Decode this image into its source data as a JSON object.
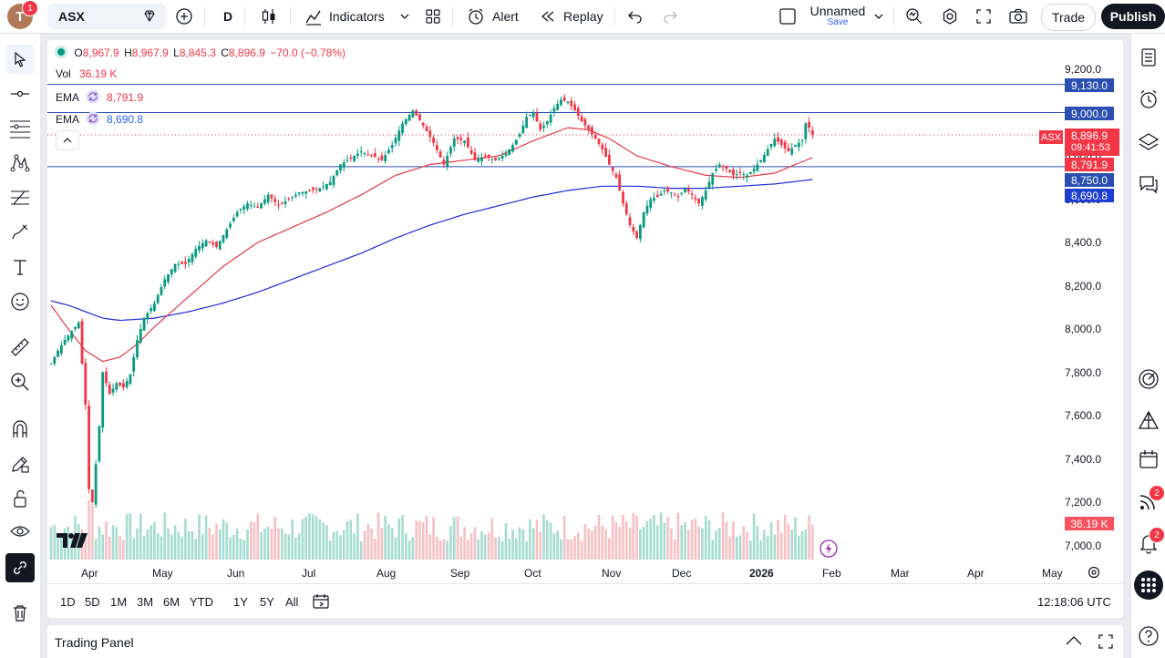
{
  "topbar": {
    "avatar_letter": "T",
    "notification_count": "1",
    "symbol": "ASX",
    "interval": "D",
    "indicators_label": "Indicators",
    "alert_label": "Alert",
    "replay_label": "Replay",
    "layout_name": "Unnamed",
    "layout_save": "Save",
    "trade_label": "Trade",
    "publish_label": "Publish"
  },
  "legend": {
    "open_label": "O",
    "open": "8,967.9",
    "high_label": "H",
    "high": "8,967.9",
    "low_label": "L",
    "low": "8,845.3",
    "close_label": "C",
    "close": "8,896.9",
    "change": "−70.0 (−0.78%)",
    "vol_label": "Vol",
    "vol_value": "36.19 K",
    "ema1_label": "EMA",
    "ema1_value": "8,791.9",
    "ema2_label": "EMA",
    "ema2_value": "8,690.8"
  },
  "chart_data": {
    "type": "candlestick",
    "symbol": "ASX",
    "interval": "D",
    "y_axis_ticks": [
      "9,200.0",
      "9,000.0",
      "8,800.0",
      "8,600.0",
      "8,400.0",
      "8,200.0",
      "8,000.0",
      "7,800.0",
      "7,600.0",
      "7,400.0",
      "7,200.0",
      "7,000.0"
    ],
    "x_axis_ticks": [
      "Apr",
      "May",
      "Jun",
      "Jul",
      "Aug",
      "Sep",
      "Oct",
      "Nov",
      "Dec",
      "2026",
      "Feb",
      "Mar",
      "Apr",
      "May"
    ],
    "ylim": [
      6980,
      9290
    ],
    "horizontal_lines": [
      9130.0,
      9000.0,
      8750.0
    ],
    "trend_close_points": [
      [
        0,
        7840
      ],
      [
        2,
        7900
      ],
      [
        4,
        7950
      ],
      [
        6,
        7990
      ],
      [
        8,
        8030
      ],
      [
        10,
        7650
      ],
      [
        11,
        7260
      ],
      [
        12,
        7200
      ],
      [
        14,
        7550
      ],
      [
        15,
        7800
      ],
      [
        17,
        7700
      ],
      [
        19,
        7750
      ],
      [
        21,
        7730
      ],
      [
        23,
        7790
      ],
      [
        25,
        7950
      ],
      [
        27,
        8050
      ],
      [
        30,
        8120
      ],
      [
        33,
        8230
      ],
      [
        36,
        8300
      ],
      [
        39,
        8300
      ],
      [
        42,
        8370
      ],
      [
        45,
        8410
      ],
      [
        48,
        8380
      ],
      [
        51,
        8460
      ],
      [
        54,
        8540
      ],
      [
        57,
        8580
      ],
      [
        60,
        8560
      ],
      [
        63,
        8620
      ],
      [
        66,
        8570
      ],
      [
        69,
        8600
      ],
      [
        72,
        8630
      ],
      [
        75,
        8640
      ],
      [
        78,
        8650
      ],
      [
        81,
        8680
      ],
      [
        84,
        8760
      ],
      [
        87,
        8790
      ],
      [
        90,
        8820
      ],
      [
        93,
        8800
      ],
      [
        96,
        8780
      ],
      [
        99,
        8850
      ],
      [
        102,
        8950
      ],
      [
        105,
        9010
      ],
      [
        108,
        8940
      ],
      [
        111,
        8860
      ],
      [
        114,
        8760
      ],
      [
        117,
        8880
      ],
      [
        120,
        8870
      ],
      [
        123,
        8780
      ],
      [
        126,
        8800
      ],
      [
        129,
        8780
      ],
      [
        132,
        8810
      ],
      [
        134,
        8850
      ],
      [
        136,
        8900
      ],
      [
        138,
        8980
      ],
      [
        140,
        9000
      ],
      [
        142,
        8920
      ],
      [
        144,
        8960
      ],
      [
        146,
        9020
      ],
      [
        148,
        9060
      ],
      [
        150,
        9050
      ],
      [
        152,
        9010
      ],
      [
        154,
        8960
      ],
      [
        156,
        8920
      ],
      [
        158,
        8880
      ],
      [
        160,
        8830
      ],
      [
        162,
        8760
      ],
      [
        164,
        8700
      ],
      [
        166,
        8580
      ],
      [
        168,
        8480
      ],
      [
        170,
        8420
      ],
      [
        172,
        8540
      ],
      [
        174,
        8600
      ],
      [
        176,
        8610
      ],
      [
        178,
        8640
      ],
      [
        180,
        8630
      ],
      [
        182,
        8610
      ],
      [
        184,
        8650
      ],
      [
        186,
        8620
      ],
      [
        188,
        8580
      ],
      [
        190,
        8640
      ],
      [
        192,
        8720
      ],
      [
        194,
        8760
      ],
      [
        196,
        8740
      ],
      [
        198,
        8710
      ],
      [
        200,
        8720
      ],
      [
        202,
        8710
      ],
      [
        204,
        8740
      ],
      [
        206,
        8780
      ],
      [
        208,
        8830
      ],
      [
        210,
        8880
      ],
      [
        212,
        8850
      ],
      [
        214,
        8820
      ],
      [
        216,
        8850
      ],
      [
        218,
        8870
      ],
      [
        219,
        8950
      ],
      [
        220,
        8930
      ],
      [
        221,
        8896.9
      ]
    ],
    "ema_red_points": [
      [
        0,
        8110
      ],
      [
        5,
        8000
      ],
      [
        10,
        7900
      ],
      [
        15,
        7850
      ],
      [
        20,
        7870
      ],
      [
        25,
        7930
      ],
      [
        30,
        8010
      ],
      [
        40,
        8150
      ],
      [
        50,
        8290
      ],
      [
        60,
        8400
      ],
      [
        70,
        8470
      ],
      [
        80,
        8540
      ],
      [
        90,
        8620
      ],
      [
        100,
        8710
      ],
      [
        110,
        8760
      ],
      [
        120,
        8780
      ],
      [
        130,
        8800
      ],
      [
        140,
        8870
      ],
      [
        150,
        8930
      ],
      [
        156,
        8920
      ],
      [
        162,
        8880
      ],
      [
        170,
        8800
      ],
      [
        180,
        8750
      ],
      [
        190,
        8710
      ],
      [
        200,
        8700
      ],
      [
        210,
        8720
      ],
      [
        216,
        8760
      ],
      [
        221,
        8791.9
      ]
    ],
    "ema_blue_points": [
      [
        0,
        8130
      ],
      [
        5,
        8110
      ],
      [
        10,
        8080
      ],
      [
        15,
        8050
      ],
      [
        20,
        8040
      ],
      [
        30,
        8050
      ],
      [
        40,
        8080
      ],
      [
        50,
        8120
      ],
      [
        60,
        8170
      ],
      [
        70,
        8230
      ],
      [
        80,
        8290
      ],
      [
        90,
        8350
      ],
      [
        100,
        8420
      ],
      [
        110,
        8480
      ],
      [
        120,
        8530
      ],
      [
        130,
        8570
      ],
      [
        140,
        8610
      ],
      [
        150,
        8640
      ],
      [
        160,
        8660
      ],
      [
        170,
        8660
      ],
      [
        180,
        8650
      ],
      [
        190,
        8650
      ],
      [
        200,
        8660
      ],
      [
        210,
        8670
      ],
      [
        221,
        8690.8
      ]
    ],
    "price_tags": {
      "line1": "9,130.0",
      "line2": "9,000.0",
      "symbol": "ASX",
      "last": "8,896.9",
      "countdown": "09:41:53",
      "ema1": "8,791.9",
      "line3": "8,750.0",
      "ema2": "8,690.8",
      "volume": "36.19 K"
    },
    "colors": {
      "up": "#089981",
      "down": "#f23645",
      "ema1": "#f23645",
      "ema2": "#2962ff",
      "hline": "#2a4fb0"
    }
  },
  "bottombar": {
    "ranges": [
      "1D",
      "5D",
      "1M",
      "3M",
      "6M",
      "YTD",
      "1Y",
      "5Y",
      "All"
    ],
    "clock": "12:18:06 UTC"
  },
  "panel": {
    "title": "Trading Panel"
  },
  "rightbar": {
    "badge_1": "2",
    "badge_2": "2"
  }
}
